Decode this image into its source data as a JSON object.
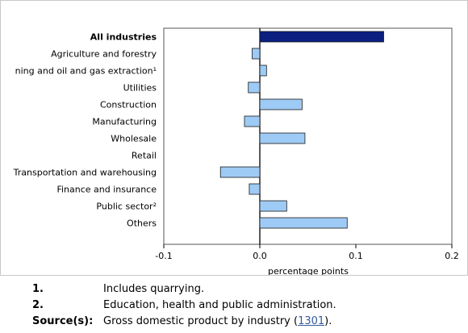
{
  "chart_data": {
    "type": "bar",
    "orientation": "horizontal",
    "categories": [
      "All industries",
      "Agriculture and forestry",
      "ning and oil and gas extraction¹",
      "Utilities",
      "Construction",
      "Manufacturing",
      "Wholesale",
      "Retail",
      "Transportation and warehousing",
      "Finance and insurance",
      "Public sector²",
      "Others"
    ],
    "values": [
      0.129,
      -0.008,
      0.007,
      -0.012,
      0.044,
      -0.016,
      0.047,
      0.0,
      -0.041,
      -0.011,
      0.028,
      0.091
    ],
    "xlim": [
      -0.1,
      0.2
    ],
    "xticks": [
      "-0.1",
      "0.0",
      "0.1",
      "0.2"
    ],
    "xlabel": "percentage points",
    "colors": {
      "highlight": "#0a1f80",
      "bar": "#9ecbf5",
      "bar_stroke": "#1a1a1a"
    }
  },
  "notes": [
    {
      "key": "1.",
      "text": "Includes quarrying."
    },
    {
      "key": "2.",
      "text": "Education, health and public administration."
    }
  ],
  "source": {
    "key": "Source(s):",
    "text_before": "Gross domestic product by industry (",
    "link": "1301",
    "text_after": ")."
  }
}
